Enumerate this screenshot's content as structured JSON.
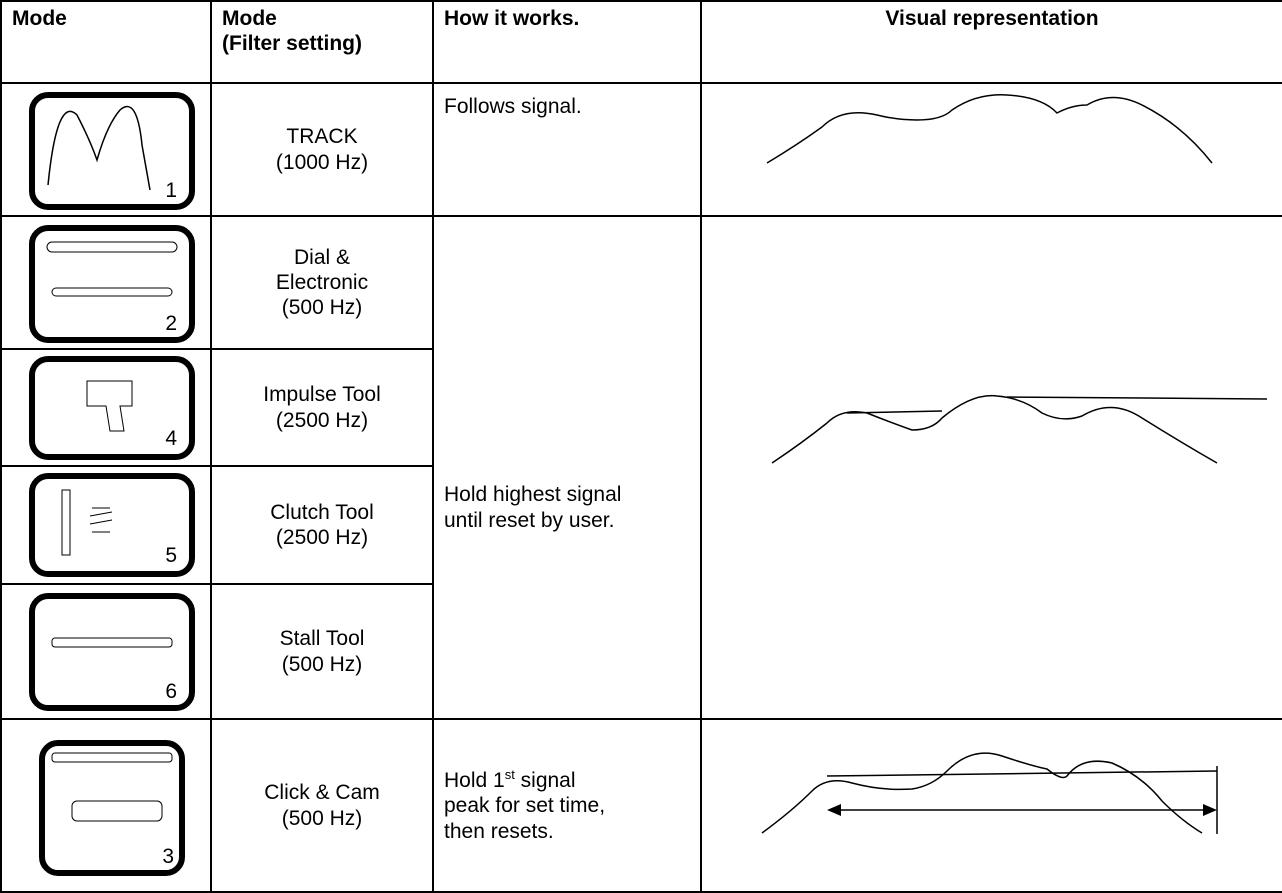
{
  "header": {
    "mode": "Mode",
    "mode_filter": [
      "Mode",
      "(Filter setting)"
    ],
    "how": "How it works.",
    "visual": "Visual representation"
  },
  "rows": [
    {
      "icon_number": "1",
      "name_lines": [
        "TRACK"
      ],
      "filter": "(1000 Hz)"
    },
    {
      "icon_number": "2",
      "name_lines": [
        "Dial &",
        "Electronic"
      ],
      "filter": "(500 Hz)"
    },
    {
      "icon_number": "4",
      "name_lines": [
        "Impulse Tool"
      ],
      "filter": "(2500 Hz)"
    },
    {
      "icon_number": "5",
      "name_lines": [
        "Clutch Tool"
      ],
      "filter": "(2500 Hz)"
    },
    {
      "icon_number": "6",
      "name_lines": [
        "Stall Tool"
      ],
      "filter": "(500 Hz)"
    },
    {
      "icon_number": "3",
      "name_lines": [
        "Click & Cam"
      ],
      "filter": "(500 Hz)"
    }
  ],
  "descriptions": {
    "track": "Follows signal.",
    "hold": [
      "Hold highest signal",
      "until reset by user."
    ],
    "click": {
      "before": "Hold 1",
      "sup": "st",
      "after": " signal",
      "line2": "peak for set time,",
      "line3": "then resets."
    }
  }
}
